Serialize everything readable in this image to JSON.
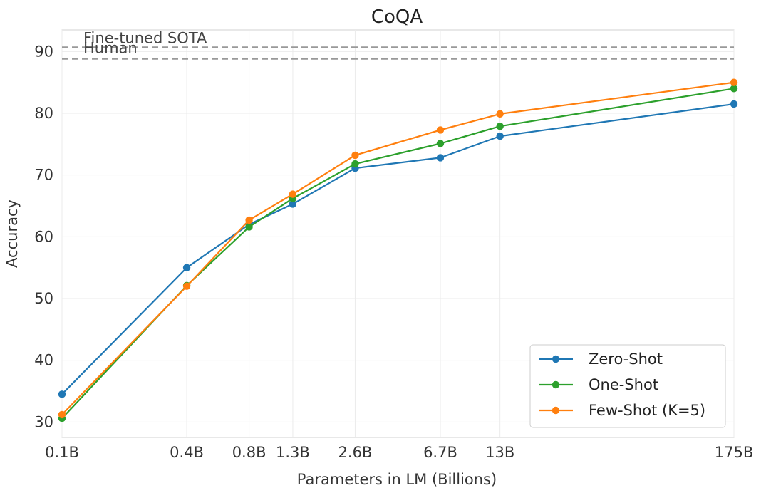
{
  "chart_data": {
    "type": "line",
    "title": "CoQA",
    "xlabel": "Parameters in LM (Billions)",
    "ylabel": "Accuracy",
    "x_scale": "log",
    "x": [
      0.1,
      0.4,
      0.8,
      1.3,
      2.6,
      6.7,
      13,
      175
    ],
    "categories": [
      "0.1B",
      "0.4B",
      "0.8B",
      "1.3B",
      "2.6B",
      "6.7B",
      "13B",
      "175B"
    ],
    "ylim": [
      27.5,
      93.5
    ],
    "yticks": [
      30,
      40,
      50,
      60,
      70,
      80,
      90
    ],
    "grid": true,
    "legend_position": "bottom-right",
    "series": [
      {
        "name": "Zero-Shot",
        "color": "#1f77b4",
        "values": [
          34.5,
          55.0,
          62.0,
          65.3,
          71.1,
          72.8,
          76.3,
          81.5
        ]
      },
      {
        "name": "One-Shot",
        "color": "#2ca02c",
        "values": [
          30.6,
          52.1,
          61.6,
          66.2,
          71.8,
          75.1,
          77.9,
          84.0
        ]
      },
      {
        "name": "Few-Shot (K=5)",
        "color": "#ff7f0e",
        "values": [
          31.2,
          52.0,
          62.7,
          66.9,
          73.2,
          77.3,
          79.9,
          85.0
        ]
      }
    ],
    "reference_lines": [
      {
        "label": "Fine-tuned SOTA",
        "value": 90.7,
        "color": "#999999"
      },
      {
        "label": "Human",
        "value": 88.8,
        "color": "#999999"
      }
    ]
  }
}
